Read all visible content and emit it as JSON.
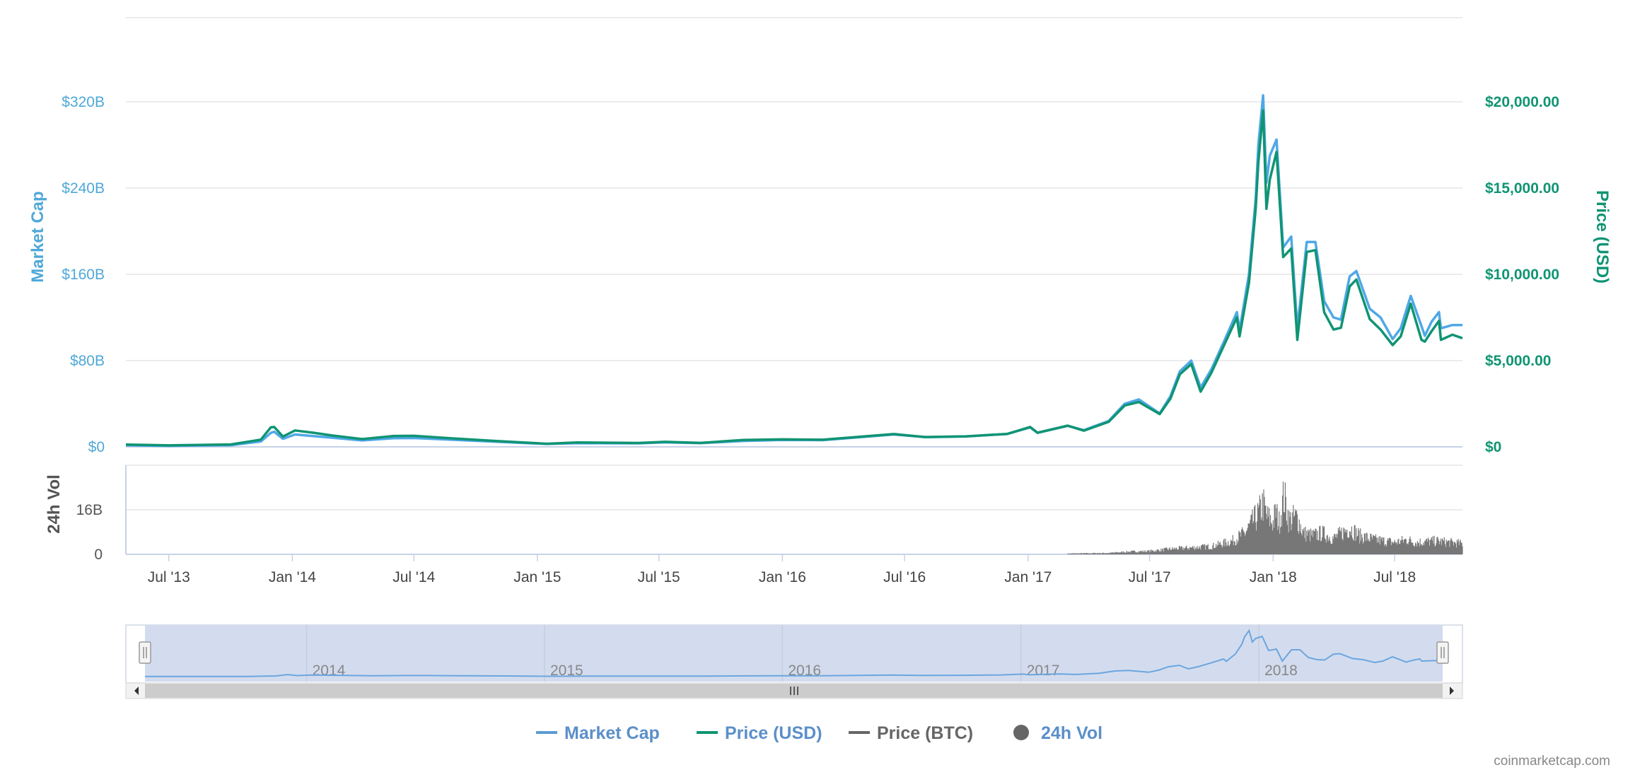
{
  "chart_data": {
    "type": "line",
    "credits": "coinmarketcap.com",
    "colors": {
      "market_cap": "#4fa8e6",
      "price_usd": "#109473",
      "price_btc": "#666666",
      "volume": "#777777",
      "navigator_fill": "#d3dcee",
      "navigator_line": "#6ba6e0",
      "grid": "#e6e6e6"
    },
    "axes": {
      "market_cap": {
        "title": "Market Cap",
        "ticks": [
          "$0",
          "$80B",
          "$160B",
          "$240B",
          "$320B"
        ],
        "tick_values": [
          0,
          80,
          160,
          240,
          320
        ],
        "range": [
          0,
          400
        ],
        "unit": "B"
      },
      "price_usd": {
        "title": "Price (USD)",
        "ticks": [
          "$0",
          "$5,000.00",
          "$10,000.00",
          "$15,000.00",
          "$20,000.00"
        ],
        "tick_values": [
          0,
          5000,
          10000,
          15000,
          20000
        ],
        "range": [
          0,
          25000
        ]
      },
      "volume": {
        "title": "24h Vol",
        "ticks": [
          "0",
          "16B"
        ],
        "tick_values": [
          0,
          16
        ],
        "range": [
          0,
          32
        ]
      },
      "x": {
        "ticks": [
          "Jul '13",
          "Jan '14",
          "Jul '14",
          "Jan '15",
          "Jul '15",
          "Jan '16",
          "Jul '16",
          "Jan '17",
          "Jul '17",
          "Jan '18",
          "Jul '18"
        ],
        "tick_dates": [
          "2013-07-01",
          "2014-01-01",
          "2014-07-01",
          "2015-01-01",
          "2015-07-01",
          "2016-01-01",
          "2016-07-01",
          "2017-01-01",
          "2017-07-01",
          "2018-01-01",
          "2018-07-01"
        ],
        "range": [
          "2013-04-28",
          "2018-10-10"
        ]
      },
      "navigator": {
        "ticks": [
          "2014",
          "2015",
          "2016",
          "2017",
          "2018"
        ],
        "tick_dates": [
          "2014-01-01",
          "2015-01-01",
          "2016-01-01",
          "2017-01-01",
          "2018-01-01"
        ],
        "range": [
          "2013-04-28",
          "2018-10-10"
        ]
      }
    },
    "legend": {
      "position": "bottom-center",
      "items": [
        {
          "label": "Market Cap",
          "symbol": "line",
          "color": "#5b9bd5",
          "text_color": "#5b8fc9"
        },
        {
          "label": "Price (USD)",
          "symbol": "line",
          "color": "#109473",
          "text_color": "#5b8fc9"
        },
        {
          "label": "Price (BTC)",
          "symbol": "line",
          "color": "#666666",
          "text_color": "#666666"
        },
        {
          "label": "24h Vol",
          "symbol": "circle",
          "color": "#666666",
          "text_color": "#5b8fc9"
        }
      ]
    },
    "series": [
      {
        "name": "Market Cap",
        "axis": "market_cap",
        "points": [
          [
            "2013-04-28",
            1.5
          ],
          [
            "2013-07-01",
            0.9
          ],
          [
            "2013-10-01",
            1.6
          ],
          [
            "2013-11-15",
            5.0
          ],
          [
            "2013-11-30",
            13.0
          ],
          [
            "2013-12-05",
            14.0
          ],
          [
            "2013-12-18",
            7.5
          ],
          [
            "2014-01-05",
            11.5
          ],
          [
            "2014-02-01",
            10.0
          ],
          [
            "2014-03-01",
            8.5
          ],
          [
            "2014-04-15",
            6.0
          ],
          [
            "2014-06-01",
            8.0
          ],
          [
            "2014-07-01",
            8.2
          ],
          [
            "2014-09-01",
            6.5
          ],
          [
            "2014-11-01",
            4.8
          ],
          [
            "2015-01-15",
            2.7
          ],
          [
            "2015-03-01",
            3.5
          ],
          [
            "2015-06-01",
            3.3
          ],
          [
            "2015-07-10",
            4.2
          ],
          [
            "2015-09-01",
            3.4
          ],
          [
            "2015-11-04",
            5.5
          ],
          [
            "2016-01-01",
            6.4
          ],
          [
            "2016-03-01",
            6.2
          ],
          [
            "2016-06-15",
            11.5
          ],
          [
            "2016-08-01",
            9.0
          ],
          [
            "2016-10-01",
            9.7
          ],
          [
            "2016-12-01",
            12.0
          ],
          [
            "2017-01-04",
            18.0
          ],
          [
            "2017-01-15",
            13.0
          ],
          [
            "2017-03-01",
            19.5
          ],
          [
            "2017-03-25",
            15.5
          ],
          [
            "2017-05-01",
            24.0
          ],
          [
            "2017-05-25",
            40.0
          ],
          [
            "2017-06-15",
            44.0
          ],
          [
            "2017-07-16",
            31.0
          ],
          [
            "2017-08-01",
            47.0
          ],
          [
            "2017-08-15",
            70.0
          ],
          [
            "2017-09-01",
            80.0
          ],
          [
            "2017-09-15",
            55.0
          ],
          [
            "2017-10-01",
            72.0
          ],
          [
            "2017-10-20",
            98.0
          ],
          [
            "2017-11-08",
            125.0
          ],
          [
            "2017-11-12",
            108.0
          ],
          [
            "2017-11-26",
            160.0
          ],
          [
            "2017-12-06",
            230.0
          ],
          [
            "2017-12-10",
            280.0
          ],
          [
            "2017-12-17",
            326.0
          ],
          [
            "2017-12-22",
            245.0
          ],
          [
            "2017-12-27",
            270.0
          ],
          [
            "2018-01-06",
            285.0
          ],
          [
            "2018-01-16",
            185.0
          ],
          [
            "2018-01-28",
            195.0
          ],
          [
            "2018-02-06",
            110.0
          ],
          [
            "2018-02-20",
            190.0
          ],
          [
            "2018-03-05",
            190.0
          ],
          [
            "2018-03-18",
            135.0
          ],
          [
            "2018-04-01",
            120.0
          ],
          [
            "2018-04-12",
            118.0
          ],
          [
            "2018-04-25",
            158.0
          ],
          [
            "2018-05-05",
            163.0
          ],
          [
            "2018-05-25",
            128.0
          ],
          [
            "2018-06-10",
            120.0
          ],
          [
            "2018-06-28",
            100.0
          ],
          [
            "2018-07-10",
            110.0
          ],
          [
            "2018-07-25",
            140.0
          ],
          [
            "2018-08-10",
            112.0
          ],
          [
            "2018-08-15",
            103.0
          ],
          [
            "2018-08-25",
            116.0
          ],
          [
            "2018-09-05",
            125.0
          ],
          [
            "2018-09-08",
            110.0
          ],
          [
            "2018-09-25",
            113.0
          ],
          [
            "2018-10-10",
            113.0
          ]
        ]
      },
      {
        "name": "Price (USD)",
        "axis": "price_usd",
        "points": [
          [
            "2013-04-28",
            135
          ],
          [
            "2013-07-01",
            88
          ],
          [
            "2013-10-01",
            140
          ],
          [
            "2013-11-15",
            420
          ],
          [
            "2013-11-30",
            1130
          ],
          [
            "2013-12-05",
            1150
          ],
          [
            "2013-12-18",
            600
          ],
          [
            "2014-01-05",
            950
          ],
          [
            "2014-02-01",
            820
          ],
          [
            "2014-03-01",
            660
          ],
          [
            "2014-04-15",
            450
          ],
          [
            "2014-06-01",
            630
          ],
          [
            "2014-07-01",
            640
          ],
          [
            "2014-09-01",
            480
          ],
          [
            "2014-11-01",
            340
          ],
          [
            "2015-01-15",
            180
          ],
          [
            "2015-03-01",
            260
          ],
          [
            "2015-06-01",
            225
          ],
          [
            "2015-07-10",
            290
          ],
          [
            "2015-09-01",
            230
          ],
          [
            "2015-11-04",
            400
          ],
          [
            "2016-01-01",
            435
          ],
          [
            "2016-03-01",
            415
          ],
          [
            "2016-06-15",
            740
          ],
          [
            "2016-08-01",
            570
          ],
          [
            "2016-10-01",
            610
          ],
          [
            "2016-12-01",
            750
          ],
          [
            "2017-01-04",
            1150
          ],
          [
            "2017-01-15",
            820
          ],
          [
            "2017-03-01",
            1230
          ],
          [
            "2017-03-25",
            940
          ],
          [
            "2017-05-01",
            1450
          ],
          [
            "2017-05-25",
            2400
          ],
          [
            "2017-06-15",
            2600
          ],
          [
            "2017-07-16",
            1900
          ],
          [
            "2017-08-01",
            2800
          ],
          [
            "2017-08-15",
            4200
          ],
          [
            "2017-09-01",
            4800
          ],
          [
            "2017-09-15",
            3200
          ],
          [
            "2017-10-01",
            4300
          ],
          [
            "2017-10-20",
            5900
          ],
          [
            "2017-11-08",
            7500
          ],
          [
            "2017-11-12",
            6400
          ],
          [
            "2017-11-26",
            9500
          ],
          [
            "2017-12-06",
            13800
          ],
          [
            "2017-12-10",
            16500
          ],
          [
            "2017-12-17",
            19500
          ],
          [
            "2017-12-22",
            13800
          ],
          [
            "2017-12-27",
            15500
          ],
          [
            "2018-01-06",
            17100
          ],
          [
            "2018-01-16",
            11000
          ],
          [
            "2018-01-28",
            11500
          ],
          [
            "2018-02-06",
            6200
          ],
          [
            "2018-02-20",
            11300
          ],
          [
            "2018-03-05",
            11400
          ],
          [
            "2018-03-18",
            7800
          ],
          [
            "2018-04-01",
            6800
          ],
          [
            "2018-04-12",
            6900
          ],
          [
            "2018-04-25",
            9300
          ],
          [
            "2018-05-05",
            9700
          ],
          [
            "2018-05-25",
            7400
          ],
          [
            "2018-06-10",
            6800
          ],
          [
            "2018-06-28",
            5900
          ],
          [
            "2018-07-10",
            6400
          ],
          [
            "2018-07-25",
            8300
          ],
          [
            "2018-08-10",
            6200
          ],
          [
            "2018-08-15",
            6100
          ],
          [
            "2018-08-25",
            6700
          ],
          [
            "2018-09-05",
            7300
          ],
          [
            "2018-09-08",
            6200
          ],
          [
            "2018-09-25",
            6500
          ],
          [
            "2018-10-10",
            6300
          ]
        ]
      },
      {
        "name": "24h Vol",
        "axis": "volume",
        "type": "column",
        "points": [
          [
            "2017-03-01",
            0.3
          ],
          [
            "2017-05-01",
            0.5
          ],
          [
            "2017-06-01",
            1.0
          ],
          [
            "2017-07-01",
            1.2
          ],
          [
            "2017-08-01",
            2.0
          ],
          [
            "2017-09-01",
            2.5
          ],
          [
            "2017-10-01",
            3.0
          ],
          [
            "2017-11-01",
            5.0
          ],
          [
            "2017-11-20",
            8.0
          ],
          [
            "2017-12-01",
            12.0
          ],
          [
            "2017-12-10",
            15.0
          ],
          [
            "2017-12-17",
            19.0
          ],
          [
            "2017-12-23",
            14.0
          ],
          [
            "2018-01-01",
            12.0
          ],
          [
            "2018-01-05",
            16.0
          ],
          [
            "2018-01-10",
            12.0
          ],
          [
            "2018-01-17",
            22.0
          ],
          [
            "2018-01-25",
            13.0
          ],
          [
            "2018-02-06",
            14.0
          ],
          [
            "2018-02-15",
            8.0
          ],
          [
            "2018-03-01",
            7.0
          ],
          [
            "2018-03-15",
            8.0
          ],
          [
            "2018-04-01",
            6.0
          ],
          [
            "2018-04-25",
            10.0
          ],
          [
            "2018-05-10",
            7.0
          ],
          [
            "2018-06-01",
            5.5
          ],
          [
            "2018-07-01",
            4.5
          ],
          [
            "2018-07-20",
            5.5
          ],
          [
            "2018-08-01",
            4.5
          ],
          [
            "2018-09-01",
            5.0
          ],
          [
            "2018-10-10",
            4.0
          ]
        ]
      }
    ]
  }
}
